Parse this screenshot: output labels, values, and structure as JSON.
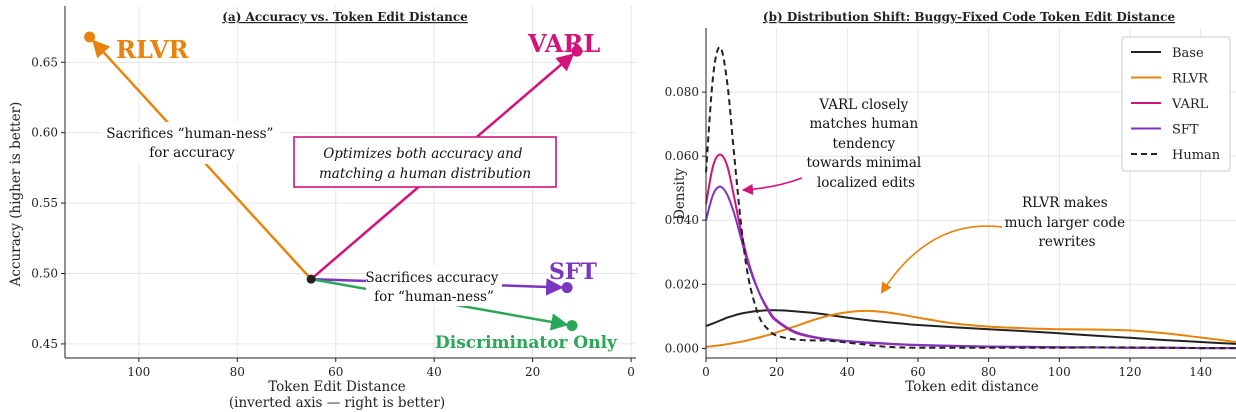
{
  "chart_data": [
    {
      "type": "scatter",
      "title": "(a) Accuracy vs. Token Edit Distance",
      "xlabel": "Token Edit Distance",
      "xlabel2": "(inverted axis — right is better)",
      "ylabel": "Accuracy (higher is better)",
      "xlim": [
        115,
        -1
      ],
      "ylim": [
        0.44,
        0.69
      ],
      "x_ticks": [
        100,
        80,
        60,
        40,
        20,
        0
      ],
      "y_ticks": [
        0.45,
        0.5,
        0.55,
        0.6,
        0.65
      ],
      "grid": true,
      "origin": {
        "x": 65,
        "y": 0.496
      },
      "points": [
        {
          "name": "RLVR",
          "x": 110,
          "y": 0.668,
          "color": "#e8830c",
          "label": "RLVR"
        },
        {
          "name": "VARL",
          "x": 11,
          "y": 0.658,
          "color": "#d3137a",
          "label": "VARL"
        },
        {
          "name": "SFT",
          "x": 13,
          "y": 0.49,
          "color": "#7b35c2",
          "label": "SFT"
        },
        {
          "name": "Discriminator Only",
          "x": 12,
          "y": 0.463,
          "color": "#2aa757",
          "label": "Discriminator Only"
        }
      ],
      "annotations": [
        {
          "lines": [
            "Sacrifices “human-ness”",
            "for accuracy"
          ]
        },
        {
          "lines": [
            "Optimizes both accuracy and",
            "matching a human distribution"
          ]
        },
        {
          "lines": [
            "Sacrifices accuracy",
            "for “human-ness”"
          ]
        }
      ]
    },
    {
      "type": "line",
      "title": "(b) Distribution Shift: Buggy-Fixed Code Token Edit Distance",
      "xlabel": "Token edit distance",
      "ylabel": "Density",
      "xlim": [
        0,
        150
      ],
      "ylim": [
        -0.003,
        0.1
      ],
      "x_ticks": [
        0,
        20,
        40,
        60,
        80,
        100,
        120,
        140
      ],
      "y_ticks": [
        "0.000",
        "0.020",
        "0.040",
        "0.060",
        "0.080"
      ],
      "grid": true,
      "legend": "top-right",
      "x": [
        0,
        2,
        4,
        6,
        8,
        10,
        12,
        15,
        18,
        20,
        25,
        30,
        35,
        40,
        45,
        50,
        55,
        60,
        70,
        80,
        90,
        100,
        110,
        120,
        130,
        140,
        150
      ],
      "series": [
        {
          "name": "Base",
          "color": "#222222",
          "dash": false,
          "values": [
            0.007,
            0.0078,
            0.0087,
            0.0096,
            0.0103,
            0.0109,
            0.0113,
            0.0117,
            0.0119,
            0.0119,
            0.0116,
            0.0111,
            0.0104,
            0.0096,
            0.0089,
            0.0083,
            0.0078,
            0.0073,
            0.0066,
            0.006,
            0.0054,
            0.0047,
            0.004,
            0.0033,
            0.0026,
            0.002,
            0.0014
          ]
        },
        {
          "name": "RLVR",
          "color": "#e8830c",
          "dash": false,
          "values": [
            0.0005,
            0.0007,
            0.001,
            0.0013,
            0.0017,
            0.0021,
            0.0026,
            0.0034,
            0.0043,
            0.005,
            0.0068,
            0.0087,
            0.0103,
            0.0113,
            0.0117,
            0.0114,
            0.0106,
            0.0096,
            0.0078,
            0.0068,
            0.0063,
            0.006,
            0.0059,
            0.0056,
            0.0047,
            0.0034,
            0.002
          ]
        },
        {
          "name": "VARL",
          "color": "#d3137a",
          "dash": false,
          "values": [
            0.045,
            0.057,
            0.0605,
            0.057,
            0.047,
            0.036,
            0.027,
            0.0175,
            0.011,
            0.0085,
            0.005,
            0.0035,
            0.0027,
            0.0022,
            0.0018,
            0.0015,
            0.0012,
            0.001,
            0.0007,
            0.0005,
            0.0004,
            0.0003,
            0.0003,
            0.0002,
            0.0002,
            0.0001,
            0.0001
          ]
        },
        {
          "name": "SFT",
          "color": "#7b35c2",
          "dash": false,
          "values": [
            0.04,
            0.048,
            0.0505,
            0.048,
            0.042,
            0.034,
            0.026,
            0.0175,
            0.0115,
            0.0088,
            0.0053,
            0.0037,
            0.0028,
            0.0023,
            0.0019,
            0.0016,
            0.0013,
            0.0011,
            0.0008,
            0.0006,
            0.0005,
            0.0004,
            0.0003,
            0.0002,
            0.0002,
            0.0001,
            0.0001
          ]
        },
        {
          "name": "Human",
          "color": "#222222",
          "dash": true,
          "values": [
            0.055,
            0.085,
            0.094,
            0.083,
            0.06,
            0.038,
            0.022,
            0.01,
            0.0055,
            0.004,
            0.0028,
            0.0025,
            0.0024,
            0.0018,
            0.0012,
            0.0006,
            0.0003,
            0.0002,
            0.0002,
            0.0002,
            0.0002,
            0.0002,
            0.0003,
            0.0003,
            0.0002,
            0.0001,
            0.0001
          ]
        }
      ],
      "annotations": [
        {
          "lines": [
            "VARL closely",
            "matches human",
            "tendency",
            "towards minimal",
            "localized edits"
          ]
        },
        {
          "lines": [
            "RLVR makes",
            "much larger code",
            "rewrites"
          ]
        }
      ]
    }
  ]
}
